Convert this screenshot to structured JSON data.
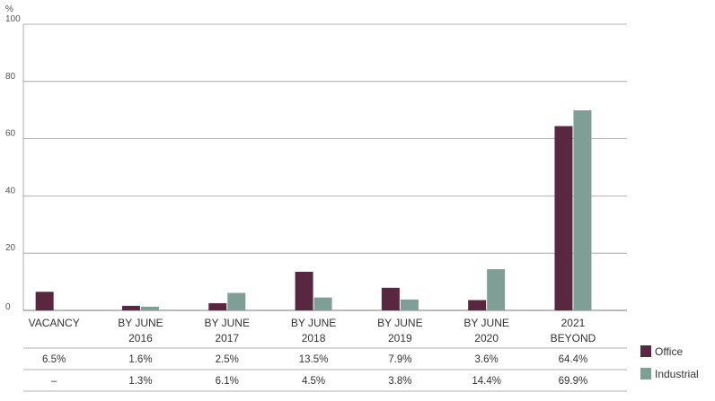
{
  "chart_data": {
    "type": "bar",
    "ylabel": "%",
    "ylim": [
      0,
      100
    ],
    "yticks": [
      0,
      20,
      40,
      60,
      80,
      100
    ],
    "grid": true,
    "legend_position": "right",
    "categories": [
      [
        "VACANCY"
      ],
      [
        "BY JUNE",
        "2016"
      ],
      [
        "BY JUNE",
        "2017"
      ],
      [
        "BY JUNE",
        "2018"
      ],
      [
        "BY JUNE",
        "2019"
      ],
      [
        "BY JUNE",
        "2020"
      ],
      [
        "2021",
        "BEYOND"
      ]
    ],
    "series": [
      {
        "name": "Office",
        "color": "#5a2740",
        "values": [
          6.5,
          1.6,
          2.5,
          13.5,
          7.9,
          3.6,
          64.4
        ],
        "labels": [
          "6.5%",
          "1.6%",
          "2.5%",
          "13.5%",
          "7.9%",
          "3.6%",
          "64.4%"
        ]
      },
      {
        "name": "Industrial",
        "color": "#7f9e96",
        "values": [
          null,
          1.3,
          6.1,
          4.5,
          3.8,
          14.4,
          69.9
        ],
        "labels": [
          "–",
          "1.3%",
          "6.1%",
          "4.5%",
          "3.8%",
          "14.4%",
          "69.9%"
        ]
      }
    ]
  }
}
